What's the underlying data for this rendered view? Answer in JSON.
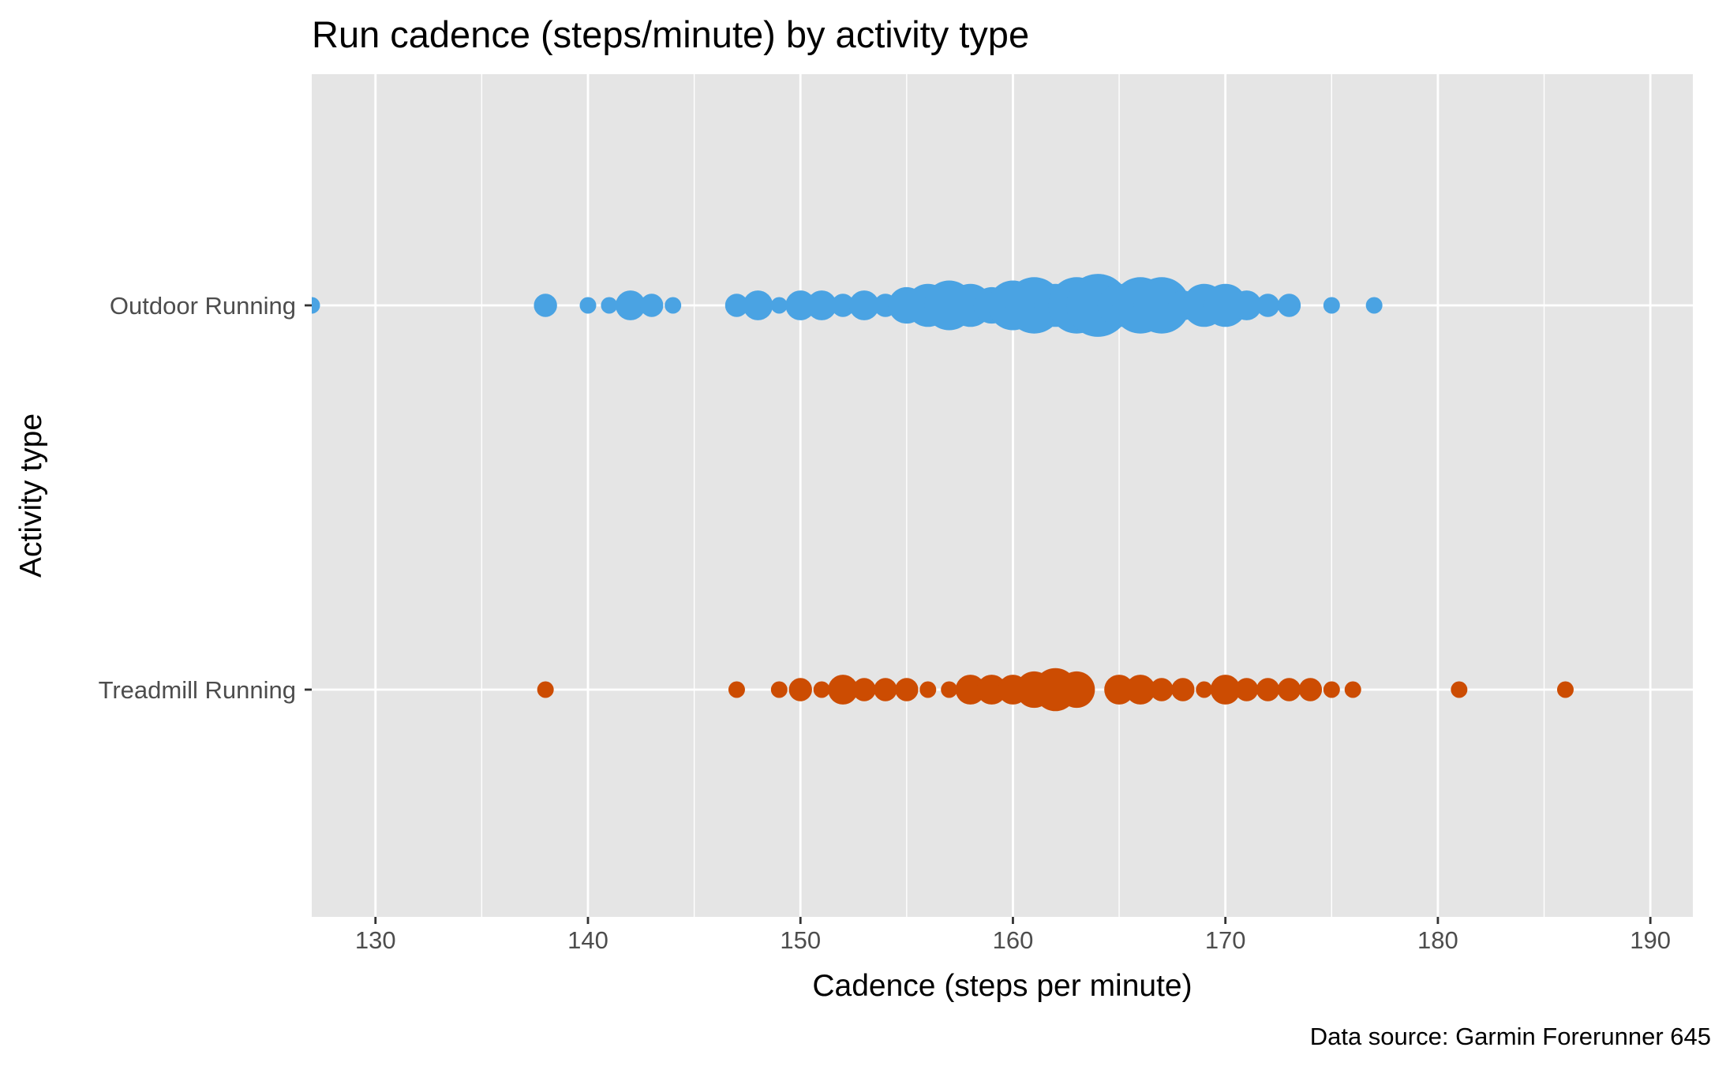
{
  "chart_data": {
    "type": "scatter",
    "title": "Run cadence (steps/minute) by activity type",
    "xlabel": "Cadence (steps per minute)",
    "ylabel": "Activity type",
    "caption": "Data source: Garmin Forerunner 645",
    "xlim": [
      127,
      192
    ],
    "x_ticks": [
      130,
      140,
      150,
      160,
      170,
      180,
      190
    ],
    "categories": [
      "Outdoor Running",
      "Treadmill Running"
    ],
    "grid": true,
    "panel_background": "#e5e5e5",
    "grid_color": "#ffffff",
    "size_note": "point size encodes count of activities",
    "series": [
      {
        "category": "Outdoor Running",
        "color": "#4aa3e3",
        "points": [
          {
            "x": 127,
            "n": 1
          },
          {
            "x": 138,
            "n": 2
          },
          {
            "x": 140,
            "n": 1
          },
          {
            "x": 141,
            "n": 1
          },
          {
            "x": 142,
            "n": 3
          },
          {
            "x": 143,
            "n": 2
          },
          {
            "x": 144,
            "n": 1
          },
          {
            "x": 147,
            "n": 2
          },
          {
            "x": 148,
            "n": 3
          },
          {
            "x": 149,
            "n": 1
          },
          {
            "x": 150,
            "n": 3
          },
          {
            "x": 151,
            "n": 3
          },
          {
            "x": 152,
            "n": 2
          },
          {
            "x": 153,
            "n": 3
          },
          {
            "x": 154,
            "n": 2
          },
          {
            "x": 155,
            "n": 4
          },
          {
            "x": 156,
            "n": 5
          },
          {
            "x": 157,
            "n": 6
          },
          {
            "x": 158,
            "n": 5
          },
          {
            "x": 159,
            "n": 4
          },
          {
            "x": 160,
            "n": 6
          },
          {
            "x": 161,
            "n": 7
          },
          {
            "x": 162,
            "n": 5
          },
          {
            "x": 163,
            "n": 7
          },
          {
            "x": 164,
            "n": 8
          },
          {
            "x": 165,
            "n": 5
          },
          {
            "x": 166,
            "n": 7
          },
          {
            "x": 167,
            "n": 7
          },
          {
            "x": 168,
            "n": 3
          },
          {
            "x": 169,
            "n": 5
          },
          {
            "x": 170,
            "n": 5
          },
          {
            "x": 171,
            "n": 3
          },
          {
            "x": 172,
            "n": 2
          },
          {
            "x": 173,
            "n": 2
          },
          {
            "x": 175,
            "n": 1
          },
          {
            "x": 177,
            "n": 1
          }
        ]
      },
      {
        "category": "Treadmill Running",
        "color": "#cc4c02",
        "points": [
          {
            "x": 138,
            "n": 1
          },
          {
            "x": 147,
            "n": 1
          },
          {
            "x": 149,
            "n": 1
          },
          {
            "x": 150,
            "n": 2
          },
          {
            "x": 151,
            "n": 1
          },
          {
            "x": 152,
            "n": 3
          },
          {
            "x": 153,
            "n": 2
          },
          {
            "x": 154,
            "n": 2
          },
          {
            "x": 155,
            "n": 2
          },
          {
            "x": 156,
            "n": 1
          },
          {
            "x": 157,
            "n": 1
          },
          {
            "x": 158,
            "n": 3
          },
          {
            "x": 159,
            "n": 3
          },
          {
            "x": 160,
            "n": 3
          },
          {
            "x": 161,
            "n": 4
          },
          {
            "x": 162,
            "n": 5
          },
          {
            "x": 163,
            "n": 4
          },
          {
            "x": 165,
            "n": 3
          },
          {
            "x": 166,
            "n": 3
          },
          {
            "x": 167,
            "n": 2
          },
          {
            "x": 168,
            "n": 2
          },
          {
            "x": 169,
            "n": 1
          },
          {
            "x": 170,
            "n": 3
          },
          {
            "x": 171,
            "n": 2
          },
          {
            "x": 172,
            "n": 2
          },
          {
            "x": 173,
            "n": 2
          },
          {
            "x": 174,
            "n": 2
          },
          {
            "x": 175,
            "n": 1
          },
          {
            "x": 176,
            "n": 1
          },
          {
            "x": 181,
            "n": 1
          },
          {
            "x": 186,
            "n": 1
          }
        ]
      }
    ]
  }
}
